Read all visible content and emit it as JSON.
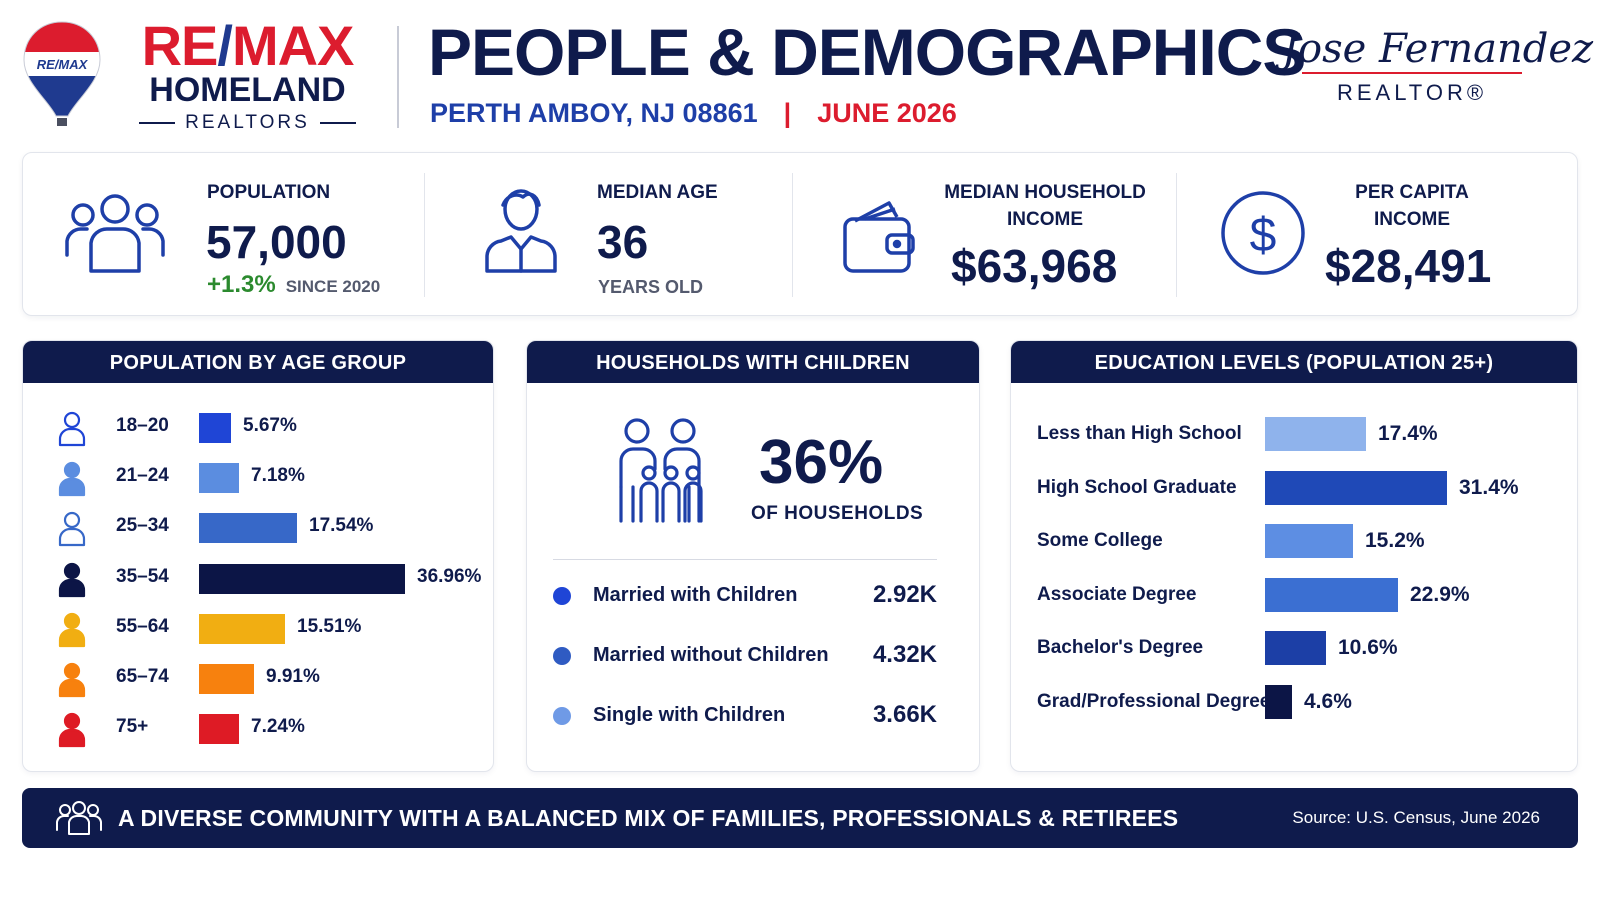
{
  "header": {
    "brand": {
      "part1": "RE",
      "slash": "/",
      "part2": "MAX",
      "name": "HOMELAND",
      "tagline": "REALTORS",
      "balloon_text": "RE/MAX"
    },
    "title": "PEOPLE & DEMOGRAPHICS",
    "location": "PERTH AMBOY, NJ 08861",
    "separator": "|",
    "date": "JUNE 2026",
    "agent": {
      "name": "Jose Fernandez",
      "title": "REALTOR®"
    }
  },
  "stats": {
    "population": {
      "label": "POPULATION",
      "value": "57,000",
      "change": "+1.3%",
      "change_note": "SINCE 2020",
      "icon": "people-group-icon"
    },
    "median_age": {
      "label": "MEDIAN AGE",
      "value": "36",
      "note": "YEARS OLD",
      "icon": "person-icon"
    },
    "household_income": {
      "label_line1": "MEDIAN HOUSEHOLD",
      "label_line2": "INCOME",
      "value": "$63,968",
      "icon": "wallet-icon"
    },
    "per_capita": {
      "label_line1": "PER CAPITA",
      "label_line2": "INCOME",
      "value": "$28,491",
      "icon": "dollar-circle-icon"
    }
  },
  "age_panel": {
    "title": "POPULATION BY AGE GROUP",
    "rows": [
      {
        "label": "18–20",
        "value": "5.67%",
        "pct": 5.67,
        "color": "#1f45d6"
      },
      {
        "label": "21–24",
        "value": "7.18%",
        "pct": 7.18,
        "color": "#5b8de0"
      },
      {
        "label": "25–34",
        "value": "17.54%",
        "pct": 17.54,
        "color": "#3768c8"
      },
      {
        "label": "35–54",
        "value": "36.96%",
        "pct": 36.96,
        "color": "#0c1546"
      },
      {
        "label": "55–64",
        "value": "15.51%",
        "pct": 15.51,
        "color": "#f1ae12"
      },
      {
        "label": "65–74",
        "value": "9.91%",
        "pct": 9.91,
        "color": "#f7810e"
      },
      {
        "label": "75+",
        "value": "7.24%",
        "pct": 7.24,
        "color": "#de1b25"
      }
    ]
  },
  "households_panel": {
    "title": "HOUSEHOLDS WITH CHILDREN",
    "percent": "36%",
    "percent_label": "OF HOUSEHOLDS",
    "rows": [
      {
        "label": "Married with Children",
        "value": "2.92K",
        "color": "#1f45d6"
      },
      {
        "label": "Married without Children",
        "value": "4.32K",
        "color": "#2f5bc2"
      },
      {
        "label": "Single with Children",
        "value": "3.66K",
        "color": "#6f9ae6"
      }
    ]
  },
  "education_panel": {
    "title": "EDUCATION LEVELS (POPULATION 25+)",
    "rows": [
      {
        "label": "Less than High School",
        "value": "17.4%",
        "pct": 17.4,
        "color": "#8fb3ec"
      },
      {
        "label": "High School Graduate",
        "value": "31.4%",
        "pct": 31.4,
        "color": "#1f49b7"
      },
      {
        "label": "Some College",
        "value": "15.2%",
        "pct": 15.2,
        "color": "#5d8ee3"
      },
      {
        "label": "Associate Degree",
        "value": "22.9%",
        "pct": 22.9,
        "color": "#3b6fd2"
      },
      {
        "label": "Bachelor's Degree",
        "value": "10.6%",
        "pct": 10.6,
        "color": "#1c3fa6"
      },
      {
        "label": "Grad/Professional Degree",
        "value": "4.6%",
        "pct": 4.6,
        "color": "#0c1546"
      }
    ]
  },
  "footer": {
    "text": "A DIVERSE COMMUNITY WITH A BALANCED MIX OF FAMILIES, PROFESSIONALS & RETIREES",
    "source": "Source: U.S. Census, June 2026"
  },
  "colors": {
    "navy": "#0f1b4c",
    "red": "#dc1c2e",
    "blue": "#1e3fa8",
    "green": "#2b8a2e"
  }
}
